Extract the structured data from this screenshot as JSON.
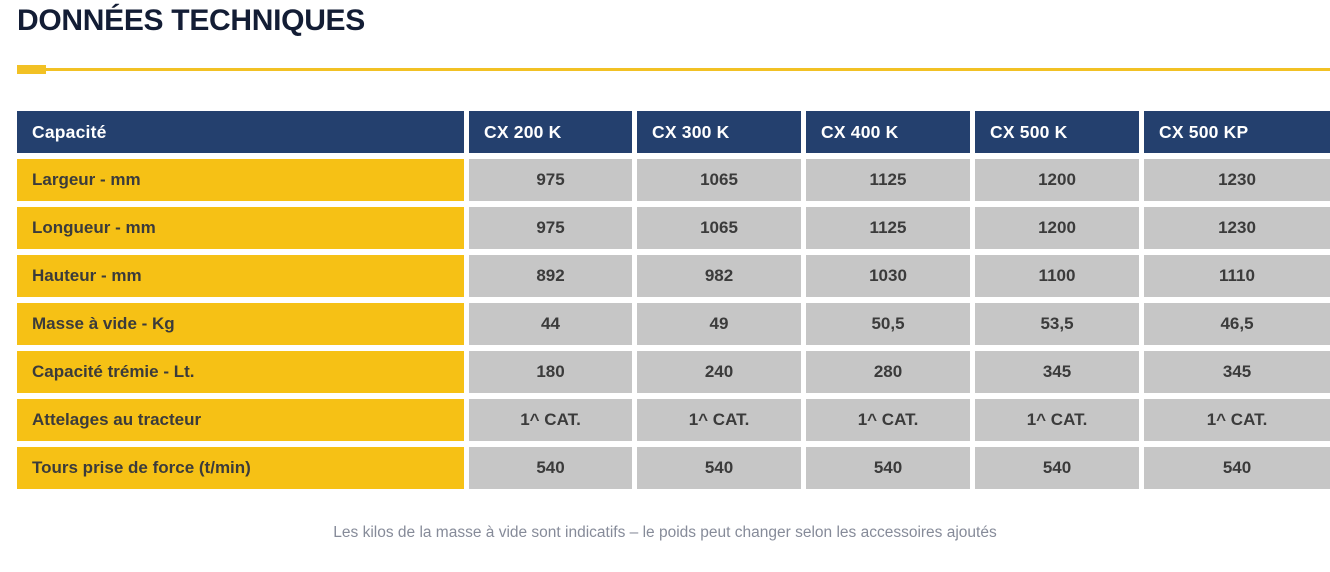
{
  "page": {
    "title": "DONNÉES TECHNIQUES",
    "footnote": "Les kilos de la masse à vide sont indicatifs – le poids peut changer selon les accessoires ajoutés"
  },
  "table": {
    "header": [
      "Capacité",
      "CX 200 K",
      "CX 300 K",
      "CX 400 K",
      "CX 500 K",
      "CX 500 KP"
    ],
    "rows": [
      {
        "label": "Largeur - mm",
        "values": [
          "975",
          "1065",
          "1125",
          "1200",
          "1230"
        ]
      },
      {
        "label": "Longueur - mm",
        "values": [
          "975",
          "1065",
          "1125",
          "1200",
          "1230"
        ]
      },
      {
        "label": "Hauteur - mm",
        "values": [
          "892",
          "982",
          "1030",
          "1100",
          "1110"
        ]
      },
      {
        "label": "Masse à vide - Kg",
        "values": [
          "44",
          "49",
          "50,5",
          "53,5",
          "46,5"
        ]
      },
      {
        "label": "Capacité trémie - Lt.",
        "values": [
          "180",
          "240",
          "280",
          "345",
          "345"
        ]
      },
      {
        "label": "Attelages au tracteur",
        "values": [
          "1^ CAT.",
          "1^ CAT.",
          "1^ CAT.",
          "1^ CAT.",
          "1^ CAT."
        ]
      },
      {
        "label": "Tours prise de force (t/min)",
        "values": [
          "540",
          "540",
          "540",
          "540",
          "540"
        ]
      }
    ]
  },
  "colors": {
    "title_color": "#131d35",
    "accent_yellow": "#f2c124",
    "header_bg": "#24406e",
    "row_label_bg": "#f6c115",
    "value_bg": "#c6c6c6",
    "cell_text": "#3b3b3b",
    "footnote_color": "#868b99"
  }
}
